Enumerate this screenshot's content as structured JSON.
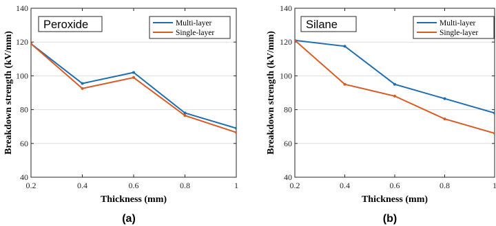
{
  "chart_data": [
    {
      "type": "line",
      "panel_label": "(a)",
      "tag": "Peroxide",
      "xlabel": "Thickness (mm)",
      "ylabel": "Breakdown strength (kV/mm)",
      "xlim": [
        0.2,
        1.0
      ],
      "ylim": [
        40,
        140
      ],
      "xticks": [
        "0.2",
        "0.4",
        "0.6",
        "0.8",
        "1"
      ],
      "yticks": [
        "40",
        "60",
        "80",
        "100",
        "120",
        "140"
      ],
      "grid": true,
      "legend_position": "top-right",
      "x": [
        0.2,
        0.4,
        0.6,
        0.8,
        1.0
      ],
      "series": [
        {
          "name": "Multi-layer",
          "color": "#1f6eb0",
          "values": [
            119,
            95.5,
            102,
            78,
            69
          ]
        },
        {
          "name": "Single-layer",
          "color": "#d95a22",
          "values": [
            119,
            92.5,
            99,
            76.5,
            66.5
          ]
        }
      ]
    },
    {
      "type": "line",
      "panel_label": "(b)",
      "tag": "Silane",
      "xlabel": "Thickness (mm)",
      "ylabel": "Breakdown strength (kV/mm)",
      "xlim": [
        0.2,
        1.0
      ],
      "ylim": [
        40,
        140
      ],
      "xticks": [
        "0.2",
        "0.4",
        "0.6",
        "0.8",
        "1"
      ],
      "yticks": [
        "40",
        "60",
        "80",
        "100",
        "120",
        "140"
      ],
      "grid": true,
      "legend_position": "top-right",
      "x": [
        0.2,
        0.4,
        0.6,
        0.8,
        1.0
      ],
      "series": [
        {
          "name": "Multi-layer",
          "color": "#1f6eb0",
          "values": [
            121,
            117.5,
            95,
            86.5,
            78
          ]
        },
        {
          "name": "Single-layer",
          "color": "#d95a22",
          "values": [
            121,
            95,
            88,
            74.5,
            66
          ]
        }
      ]
    }
  ]
}
